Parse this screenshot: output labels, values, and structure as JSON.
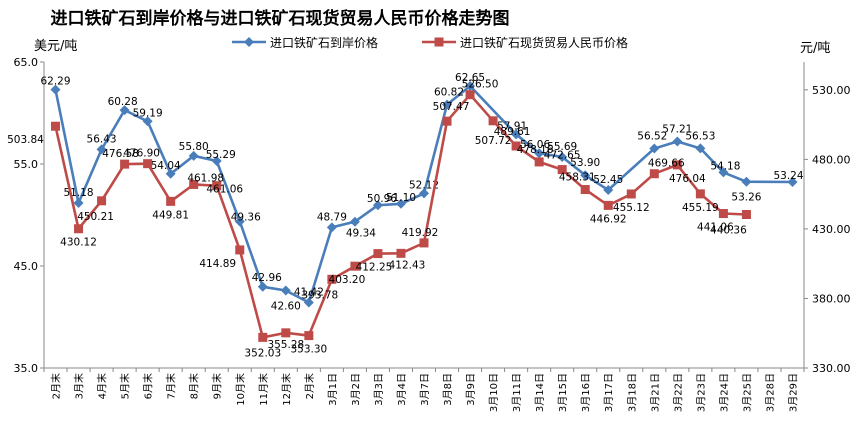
{
  "title": "进口铁矿石到岸价格与进口铁矿石现货贸易人民币价格走势图",
  "y_left_unit": "美元/吨",
  "y_right_unit": "元/吨",
  "legend": [
    {
      "label": "进口铁矿石到岸价格",
      "color": "#4a7ebb",
      "marker": "diamond"
    },
    {
      "label": "进口铁矿石现货贸易人民币价格",
      "color": "#be4b48",
      "marker": "square"
    }
  ],
  "chart_data": {
    "type": "line",
    "categories": [
      "2月末",
      "3月末",
      "4月末",
      "5月末",
      "6月末",
      "7月末",
      "8月末",
      "9月末",
      "10月末",
      "11月末",
      "12月末",
      "2月末",
      "3月1日",
      "3月2日",
      "3月3日",
      "3月4日",
      "3月7日",
      "3月8日",
      "3月9日",
      "3月10日",
      "3月11日",
      "3月14日",
      "3月15日",
      "3月16日",
      "3月17日",
      "3月18日",
      "3月21日",
      "3月22日",
      "3月23日",
      "3月24日",
      "3月25日",
      "3月28日",
      "3月29日"
    ],
    "left_axis": {
      "ylim": [
        35.0,
        65.0
      ],
      "ticks": [
        "35.0",
        "45.0",
        "55.0",
        "65.0"
      ]
    },
    "right_axis": {
      "ylim": [
        330.0,
        550.0
      ],
      "ticks": [
        "330.00",
        "380.00",
        "430.00",
        "480.00",
        "530.00"
      ]
    },
    "series": [
      {
        "name": "进口铁矿石到岸价格",
        "axis": "left",
        "color": "#4a7ebb",
        "values": [
          62.29,
          51.18,
          56.43,
          60.28,
          59.19,
          54.04,
          55.8,
          55.29,
          49.36,
          42.96,
          42.6,
          41.42,
          48.79,
          49.34,
          50.96,
          51.1,
          52.12,
          60.82,
          62.65,
          null,
          57.91,
          56.06,
          55.69,
          53.9,
          52.45,
          null,
          56.52,
          57.21,
          56.53,
          54.18,
          53.26,
          null,
          53.24
        ],
        "labels": [
          "62.29",
          "51.18",
          "56.43",
          "60.28",
          "59.19",
          "54.04",
          "55.80",
          "55.29",
          "49.36",
          "42.96",
          "42.60",
          "41.42",
          "48.79",
          "49.34",
          "50.96",
          "51.10",
          "52.12",
          "60.82",
          "62.65",
          "",
          "57.91",
          "56.06",
          "55.69",
          "53.90",
          "52.45",
          "",
          "56.52",
          "57.21",
          "56.53",
          "54.18",
          "53.26",
          "",
          "53.24"
        ]
      },
      {
        "name": "进口铁矿石现货贸易人民币价格",
        "axis": "right",
        "color": "#be4b48",
        "values": [
          503.84,
          430.12,
          450.21,
          476.58,
          476.9,
          449.81,
          461.98,
          461.06,
          414.89,
          352.03,
          355.28,
          353.3,
          393.78,
          403.2,
          412.25,
          412.43,
          419.92,
          507.47,
          526.5,
          507.72,
          489.61,
          478.16,
          472.65,
          458.31,
          446.92,
          455.12,
          469.66,
          476.04,
          455.19,
          441.06,
          440.36,
          null,
          null
        ],
        "labels": [
          "503.84",
          "430.12",
          "450.21",
          "476.58",
          "476.90",
          "449.81",
          "461.98",
          "461.06",
          "414.89",
          "352.03",
          "355.28",
          "353.30",
          "393.78",
          "403.20",
          "412.25",
          "412.43",
          "419.92",
          "507.47",
          "526.50",
          "507.72",
          "489.61",
          "478.16",
          "472.65",
          "458.31",
          "446.92",
          "455.12",
          "469.66",
          "476.04",
          "455.19",
          "441.06",
          "440.36",
          "",
          ""
        ]
      }
    ]
  }
}
